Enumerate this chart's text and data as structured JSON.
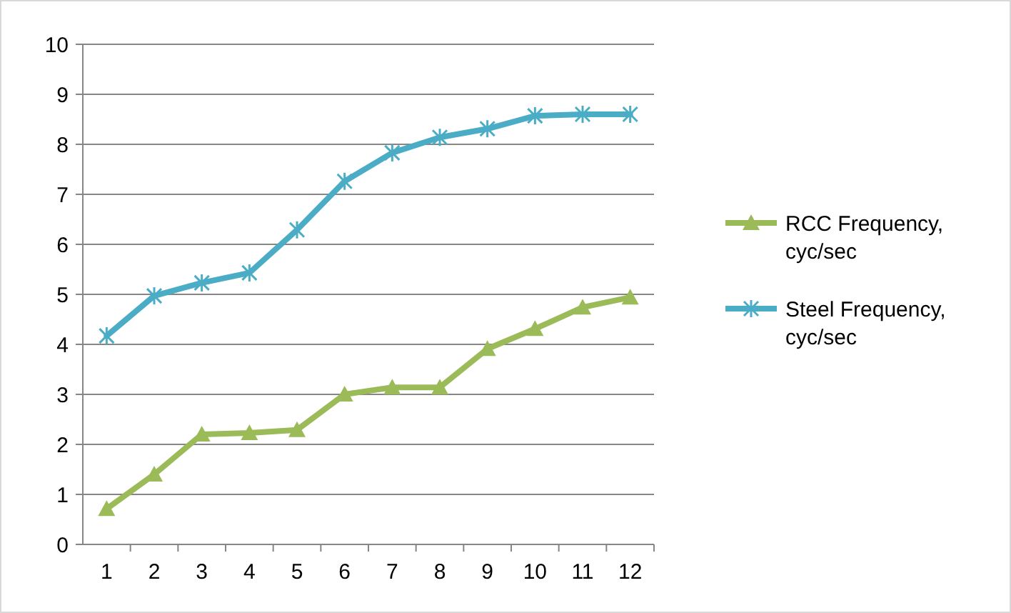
{
  "chart_data": {
    "type": "line",
    "categories": [
      "1",
      "2",
      "3",
      "4",
      "5",
      "6",
      "7",
      "8",
      "9",
      "10",
      "11",
      "12"
    ],
    "series": [
      {
        "name": "RCC Frequency, cyc/sec",
        "color": "#9bbb59",
        "marker": "triangle",
        "values": [
          0.71,
          1.4,
          2.2,
          2.23,
          2.29,
          3.0,
          3.14,
          3.14,
          3.91,
          4.31,
          4.74,
          4.94
        ]
      },
      {
        "name": "Steel Frequency, cyc/sec",
        "color": "#4bacc6",
        "marker": "cross",
        "values": [
          4.17,
          4.97,
          5.23,
          5.43,
          6.29,
          7.26,
          7.83,
          8.14,
          8.31,
          8.57,
          8.6,
          8.6
        ]
      }
    ],
    "ylim": [
      0,
      10
    ],
    "yticks": [
      0,
      1,
      2,
      3,
      4,
      5,
      6,
      7,
      8,
      9,
      10
    ],
    "grid": "y",
    "legend": "right"
  }
}
